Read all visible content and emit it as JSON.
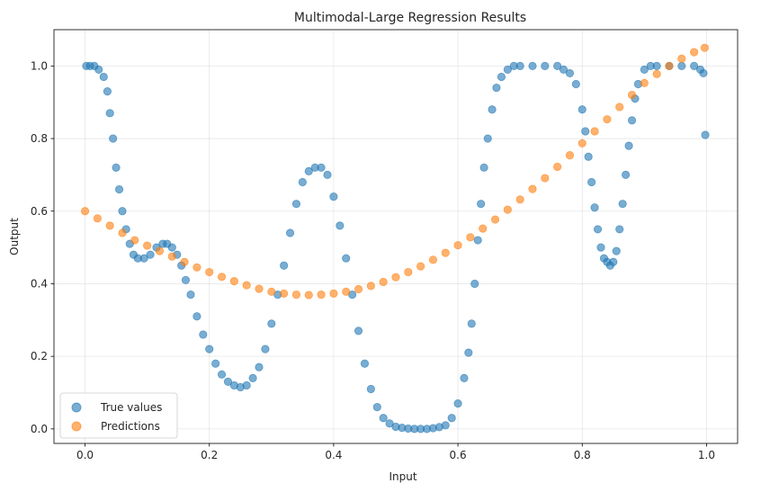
{
  "chart_data": {
    "type": "scatter",
    "title": "Multimodal-Large Regression Results",
    "xlabel": "Input",
    "ylabel": "Output",
    "xlim": [
      -0.05,
      1.05
    ],
    "ylim": [
      -0.04,
      1.1
    ],
    "grid": true,
    "legend_position": "lower-left",
    "xticks": [
      0.0,
      0.2,
      0.4,
      0.6,
      0.8,
      1.0
    ],
    "xtick_labels": [
      "0.0",
      "0.2",
      "0.4",
      "0.6",
      "0.8",
      "1.0"
    ],
    "yticks": [
      0.0,
      0.2,
      0.4,
      0.6,
      0.8,
      1.0
    ],
    "ytick_labels": [
      "0.0",
      "0.2",
      "0.4",
      "0.6",
      "0.8",
      "1.0"
    ],
    "series": [
      {
        "name": "True values",
        "color": "#1f77b4",
        "x": [
          0.002,
          0.008,
          0.015,
          0.022,
          0.03,
          0.036,
          0.04,
          0.045,
          0.05,
          0.055,
          0.06,
          0.066,
          0.072,
          0.078,
          0.085,
          0.095,
          0.105,
          0.115,
          0.125,
          0.132,
          0.14,
          0.148,
          0.155,
          0.162,
          0.17,
          0.18,
          0.19,
          0.2,
          0.21,
          0.22,
          0.23,
          0.24,
          0.25,
          0.26,
          0.27,
          0.28,
          0.29,
          0.3,
          0.31,
          0.32,
          0.33,
          0.34,
          0.35,
          0.36,
          0.37,
          0.38,
          0.39,
          0.4,
          0.41,
          0.42,
          0.43,
          0.44,
          0.45,
          0.46,
          0.47,
          0.48,
          0.49,
          0.5,
          0.51,
          0.52,
          0.53,
          0.54,
          0.55,
          0.56,
          0.57,
          0.58,
          0.59,
          0.6,
          0.61,
          0.617,
          0.622,
          0.627,
          0.632,
          0.637,
          0.642,
          0.648,
          0.655,
          0.662,
          0.67,
          0.68,
          0.69,
          0.7,
          0.72,
          0.74,
          0.76,
          0.77,
          0.78,
          0.79,
          0.8,
          0.805,
          0.81,
          0.815,
          0.82,
          0.825,
          0.83,
          0.835,
          0.84,
          0.845,
          0.85,
          0.855,
          0.86,
          0.865,
          0.87,
          0.875,
          0.88,
          0.885,
          0.89,
          0.9,
          0.91,
          0.92,
          0.94,
          0.96,
          0.98,
          0.99,
          0.995,
          0.998
        ],
        "y": [
          1.0,
          1.0,
          1.0,
          0.99,
          0.97,
          0.93,
          0.87,
          0.8,
          0.72,
          0.66,
          0.6,
          0.55,
          0.51,
          0.48,
          0.47,
          0.47,
          0.48,
          0.5,
          0.51,
          0.51,
          0.5,
          0.48,
          0.45,
          0.41,
          0.37,
          0.31,
          0.26,
          0.22,
          0.18,
          0.15,
          0.13,
          0.12,
          0.115,
          0.12,
          0.14,
          0.17,
          0.22,
          0.29,
          0.37,
          0.45,
          0.54,
          0.62,
          0.68,
          0.71,
          0.72,
          0.72,
          0.7,
          0.64,
          0.56,
          0.47,
          0.37,
          0.27,
          0.18,
          0.11,
          0.06,
          0.03,
          0.015,
          0.006,
          0.003,
          0.001,
          0.0,
          0.0,
          0.0,
          0.002,
          0.005,
          0.01,
          0.03,
          0.07,
          0.14,
          0.21,
          0.29,
          0.4,
          0.52,
          0.62,
          0.72,
          0.8,
          0.88,
          0.94,
          0.97,
          0.99,
          1.0,
          1.0,
          1.0,
          1.0,
          1.0,
          0.99,
          0.98,
          0.95,
          0.88,
          0.82,
          0.75,
          0.68,
          0.61,
          0.55,
          0.5,
          0.47,
          0.46,
          0.45,
          0.46,
          0.49,
          0.55,
          0.62,
          0.7,
          0.78,
          0.85,
          0.91,
          0.95,
          0.99,
          1.0,
          1.0,
          1.0,
          1.0,
          1.0,
          0.99,
          0.98,
          0.81
        ]
      },
      {
        "name": "Predictions",
        "color": "#ff7f0e",
        "x": [
          0.0,
          0.02,
          0.04,
          0.06,
          0.08,
          0.1,
          0.12,
          0.14,
          0.16,
          0.18,
          0.2,
          0.22,
          0.24,
          0.26,
          0.28,
          0.3,
          0.32,
          0.34,
          0.36,
          0.38,
          0.4,
          0.42,
          0.44,
          0.46,
          0.48,
          0.5,
          0.52,
          0.54,
          0.56,
          0.58,
          0.6,
          0.62,
          0.64,
          0.66,
          0.68,
          0.7,
          0.72,
          0.74,
          0.76,
          0.78,
          0.8,
          0.82,
          0.84,
          0.86,
          0.88,
          0.9,
          0.92,
          0.94,
          0.96,
          0.98,
          0.997
        ],
        "y": [
          0.6,
          0.58,
          0.56,
          0.54,
          0.52,
          0.505,
          0.49,
          0.475,
          0.46,
          0.445,
          0.432,
          0.419,
          0.407,
          0.396,
          0.386,
          0.378,
          0.373,
          0.37,
          0.369,
          0.37,
          0.373,
          0.378,
          0.385,
          0.394,
          0.405,
          0.418,
          0.432,
          0.448,
          0.466,
          0.485,
          0.506,
          0.528,
          0.552,
          0.577,
          0.604,
          0.632,
          0.661,
          0.691,
          0.722,
          0.754,
          0.787,
          0.82,
          0.853,
          0.887,
          0.92,
          0.953,
          0.978,
          1.0,
          1.02,
          1.038,
          1.05
        ]
      }
    ]
  }
}
